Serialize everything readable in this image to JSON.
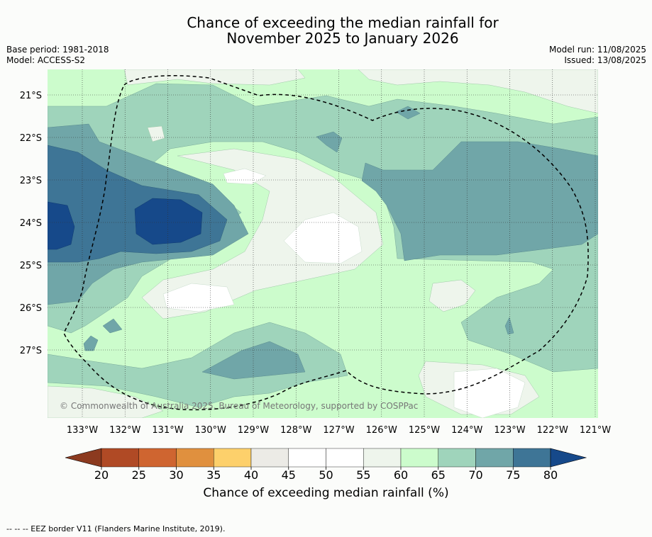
{
  "title": {
    "line1": "Chance of exceeding the median rainfall for",
    "line2": "November 2025 to January 2026"
  },
  "meta_left": {
    "base_period": "Base period: 1981-2018",
    "model": "Model: ACCESS-S2"
  },
  "meta_right": {
    "model_run": "Model run: 11/08/2025",
    "issued": "Issued: 13/08/2025"
  },
  "copyright": "© Commonwealth of Australia 2025, Bureau of Meteorology, supported by COSPPac",
  "lon_labels": [
    "133°W",
    "132°W",
    "131°W",
    "130°W",
    "129°W",
    "128°W",
    "127°W",
    "126°W",
    "125°W",
    "124°W",
    "123°W",
    "122°W",
    "121°W"
  ],
  "lat_labels": [
    "21°S",
    "22°S",
    "23°S",
    "24°S",
    "25°S",
    "26°S",
    "27°S"
  ],
  "colorbar": {
    "ticks": [
      "20",
      "25",
      "30",
      "35",
      "40",
      "45",
      "50",
      "55",
      "60",
      "65",
      "70",
      "75",
      "80"
    ],
    "label": "Chance of exceeding median rainfall (%)",
    "colors": [
      "#8c3a1f",
      "#b04a25",
      "#cf6530",
      "#e0903e",
      "#fdd06b",
      "#ecebe6",
      "#ffffff",
      "#ffffff",
      "#eef5ec",
      "#ccfccc",
      "#9fd4bb",
      "#70a6a8",
      "#3e7596",
      "#16498a"
    ]
  },
  "footnote": "--  --  -- EEZ border V11 (Flanders Marine Institute, 2019)."
}
